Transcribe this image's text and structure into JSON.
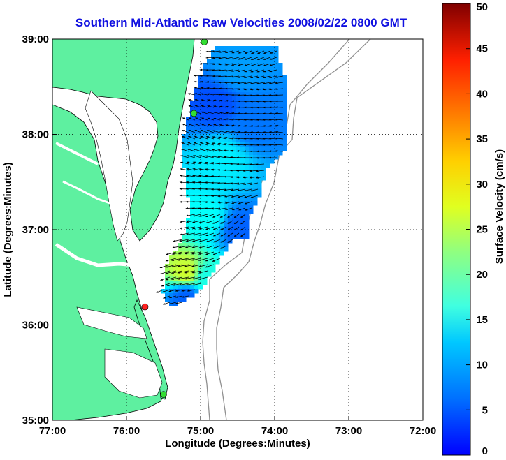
{
  "chart_data": {
    "type": "heatmap",
    "title": "Southern Mid-Atlantic Raw Velocities 2008/02/22 0800 GMT",
    "xlabel": "Longitude (Degrees:Minutes)",
    "ylabel": "Latitude (Degrees:Minutes)",
    "colorbar_label": "Surface Velocity (cm/s)",
    "x_ticks": [
      "77:00",
      "76:00",
      "75:00",
      "74:00",
      "73:00",
      "72:00"
    ],
    "y_ticks": [
      "35:00",
      "36:00",
      "37:00",
      "38:00",
      "39:00"
    ],
    "xlim": [
      -77,
      -72
    ],
    "ylim": [
      35,
      39
    ],
    "colorbar_ticks": [
      0,
      5,
      10,
      15,
      20,
      25,
      30,
      35,
      40,
      45,
      50
    ],
    "colorbar_range": [
      0,
      50
    ],
    "grid": true,
    "colors": {
      "land": "#5ef0a0",
      "title": "#1010e0",
      "isobath": "#909090",
      "vector": "#000000"
    },
    "stations": [
      {
        "lon": -74.95,
        "lat": 38.97,
        "color": "#33dd33"
      },
      {
        "lon": -75.09,
        "lat": 38.22,
        "color": "#33dd33"
      },
      {
        "lon": -75.75,
        "lat": 36.19,
        "color": "#ff2020"
      },
      {
        "lon": -75.5,
        "lat": 35.27,
        "color": "#33dd33"
      }
    ],
    "velocity_regions": [
      {
        "lon": -74.8,
        "lat": 38.3,
        "speed": 10
      },
      {
        "lon": -74.5,
        "lat": 38.7,
        "speed": 14
      },
      {
        "lon": -74.3,
        "lat": 38.1,
        "speed": 12
      },
      {
        "lon": -74.7,
        "lat": 37.75,
        "speed": 18
      },
      {
        "lon": -74.9,
        "lat": 37.1,
        "speed": 19
      },
      {
        "lon": -74.5,
        "lat": 37.0,
        "speed": 11
      },
      {
        "lon": -75.2,
        "lat": 36.55,
        "speed": 29
      },
      {
        "lon": -74.9,
        "lat": 36.5,
        "speed": 20
      },
      {
        "lon": -75.2,
        "lat": 36.3,
        "speed": 11
      }
    ]
  }
}
